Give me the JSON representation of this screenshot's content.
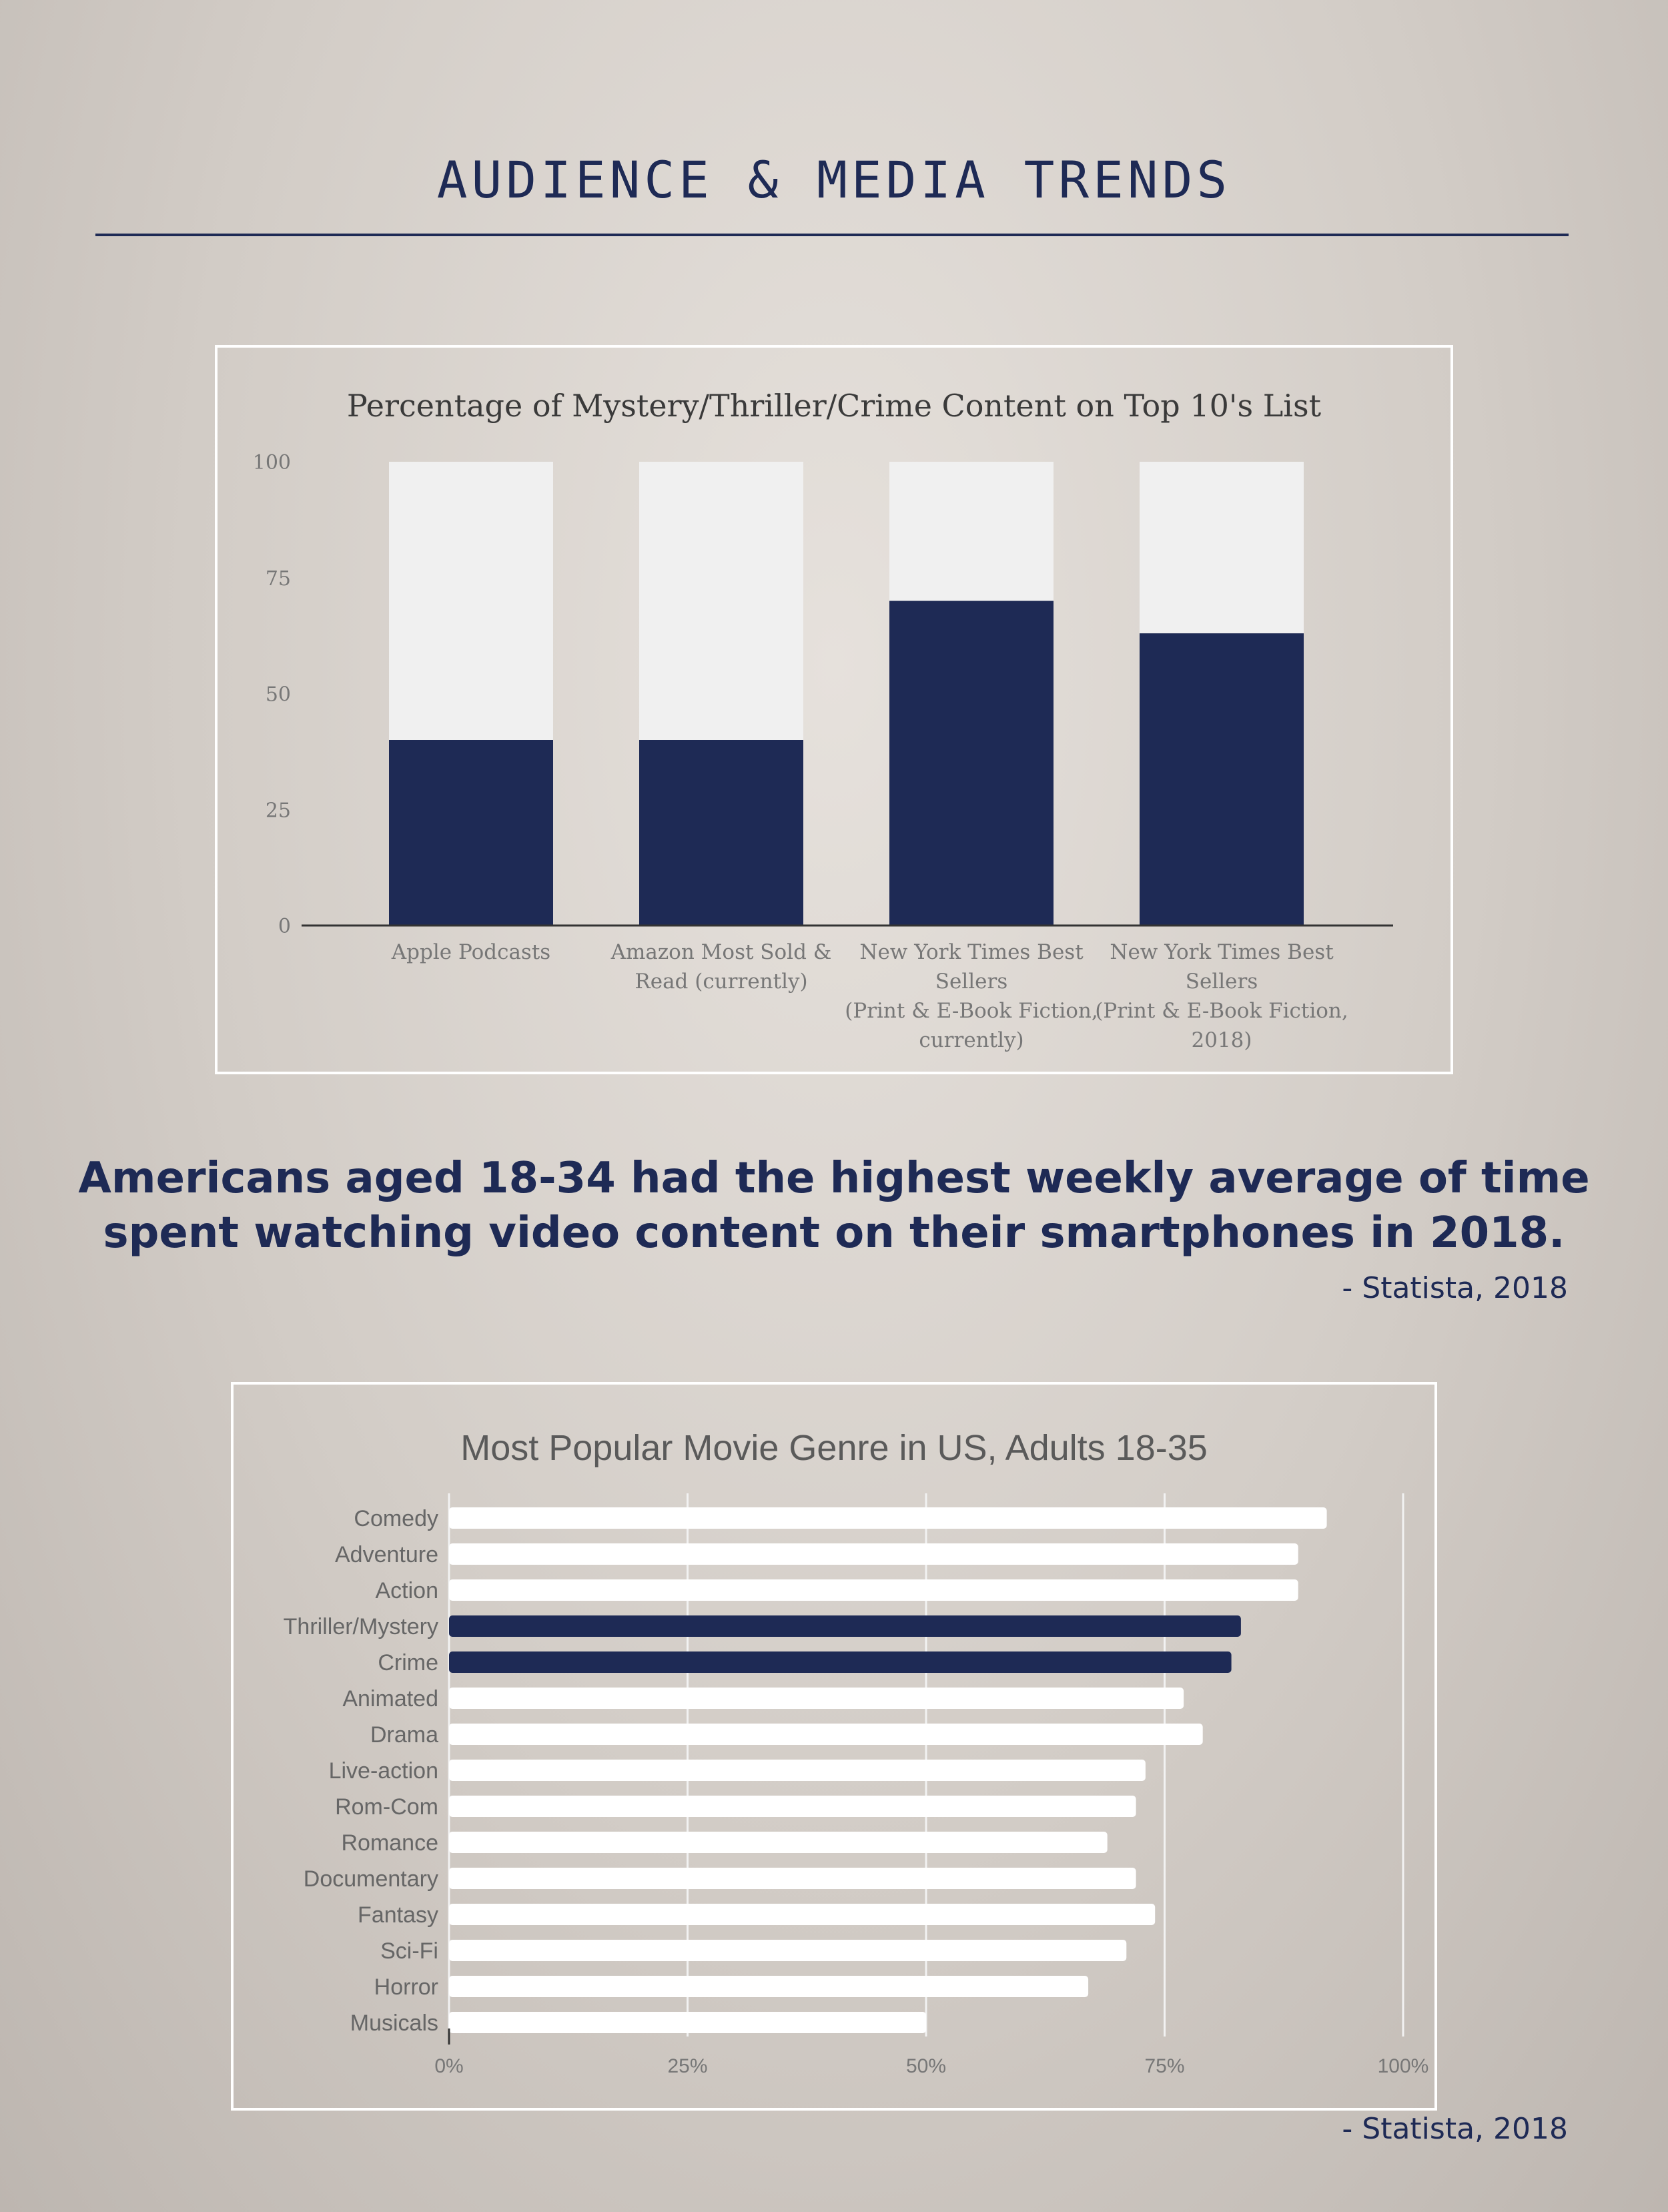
{
  "page": {
    "title": "AUDIENCE & MEDIA TRENDS",
    "quote_line1": "Americans aged 18-34 had the highest weekly average of time",
    "quote_line2": "spent watching video content on their smartphones in 2018.",
    "source1": "- Statista, 2018",
    "source2": "- Statista, 2018"
  },
  "colors": {
    "navy": "#1e2a55",
    "bar_light": "#f0f0f0",
    "white": "#ffffff",
    "title_gray": "#5a5a5a"
  },
  "chart_data": [
    {
      "type": "bar",
      "stacked": true,
      "title": "Percentage of Mystery/Thriller/Crime Content on Top 10's List",
      "categories": [
        [
          "Apple Podcasts"
        ],
        [
          "Amazon Most Sold &",
          "Read (currently)"
        ],
        [
          "New York Times Best",
          "Sellers",
          "(Print & E-Book Fiction,",
          "currently)"
        ],
        [
          "New York Times Best",
          "Sellers",
          "(Print & E-Book Fiction,",
          "2018)"
        ]
      ],
      "values": [
        40,
        40,
        70,
        63
      ],
      "total": 100,
      "ylim": [
        0,
        100
      ],
      "yticks": [
        0,
        25,
        50,
        75,
        100
      ],
      "grid": false
    },
    {
      "type": "bar",
      "orientation": "horizontal",
      "title": "Most Popular Movie Genre in US, Adults 18-35",
      "categories": [
        "Comedy",
        "Adventure",
        "Action",
        "Thriller/Mystery",
        "Crime",
        "Animated",
        "Drama",
        "Live-action",
        "Rom-Com",
        "Romance",
        "Documentary",
        "Fantasy",
        "Sci-Fi",
        "Horror",
        "Musicals"
      ],
      "values": [
        92,
        89,
        89,
        83,
        82,
        77,
        79,
        73,
        72,
        69,
        72,
        74,
        71,
        67,
        50
      ],
      "highlighted": [
        "Thriller/Mystery",
        "Crime"
      ],
      "xlim": [
        0,
        100
      ],
      "xticks": [
        "0%",
        "25%",
        "50%",
        "75%",
        "100%"
      ],
      "grid": true
    }
  ]
}
